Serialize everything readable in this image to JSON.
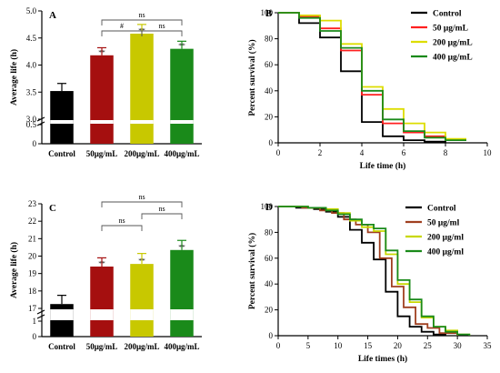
{
  "chart_data": [
    {
      "panel": "A",
      "type": "bar",
      "ylabel": "Average life (h)",
      "ylim_upper": [
        3.0,
        5.0
      ],
      "y_ticks_upper": [
        "3.0",
        "3.5",
        "4.0",
        "4.5",
        "5.0"
      ],
      "y_ticks_lower": [
        "0",
        "0.5"
      ],
      "categories": [
        "Control",
        "50μg/mL",
        "200μg/mL",
        "400μg/mL"
      ],
      "values": [
        3.52,
        4.18,
        4.58,
        4.3
      ],
      "errors": [
        0.14,
        0.14,
        0.17,
        0.14
      ],
      "colors": [
        "#000000",
        "#a50f0f",
        "#c8c800",
        "#1a8a1a"
      ],
      "bar_sig": [
        "",
        "**",
        "**",
        "**"
      ],
      "brackets": [
        {
          "from": 1,
          "to": 3,
          "label": "ns",
          "level": 2
        },
        {
          "from": 1,
          "to": 2,
          "label": "#",
          "level": 1
        },
        {
          "from": 2,
          "to": 3,
          "label": "ns",
          "level": 1
        }
      ]
    },
    {
      "panel": "B",
      "type": "line",
      "xlabel": "Life time (h)",
      "ylabel": "Percent survival (%)",
      "xlim": [
        0,
        10
      ],
      "ylim": [
        0,
        100
      ],
      "x_ticks": [
        "0",
        "2",
        "4",
        "6",
        "8",
        "10"
      ],
      "y_ticks": [
        "0",
        "20",
        "40",
        "60",
        "80",
        "100"
      ],
      "legend_position": "top-right",
      "series": [
        {
          "name": "Control",
          "color": "#000000",
          "points": [
            [
              0,
              100
            ],
            [
              1,
              100
            ],
            [
              1,
              92
            ],
            [
              2,
              92
            ],
            [
              2,
              81
            ],
            [
              3,
              81
            ],
            [
              3,
              55
            ],
            [
              4,
              55
            ],
            [
              4,
              16
            ],
            [
              5,
              16
            ],
            [
              5,
              5
            ],
            [
              6,
              5
            ],
            [
              6,
              2
            ],
            [
              7,
              2
            ],
            [
              7,
              1
            ],
            [
              8,
              1
            ],
            [
              8,
              0
            ]
          ]
        },
        {
          "name": "50 μg/mL",
          "color": "#ff2020",
          "points": [
            [
              0,
              100
            ],
            [
              1,
              100
            ],
            [
              1,
              97
            ],
            [
              2,
              97
            ],
            [
              2,
              88
            ],
            [
              3,
              88
            ],
            [
              3,
              71
            ],
            [
              4,
              71
            ],
            [
              4,
              37
            ],
            [
              5,
              37
            ],
            [
              5,
              15
            ],
            [
              6,
              15
            ],
            [
              6,
              8
            ],
            [
              7,
              8
            ],
            [
              7,
              5
            ],
            [
              8,
              5
            ],
            [
              8,
              2
            ],
            [
              9,
              2
            ]
          ]
        },
        {
          "name": "200 μg/mL",
          "color": "#dddd00",
          "points": [
            [
              0,
              100
            ],
            [
              1,
              100
            ],
            [
              1,
              98
            ],
            [
              2,
              98
            ],
            [
              2,
              94
            ],
            [
              3,
              94
            ],
            [
              3,
              76
            ],
            [
              4,
              76
            ],
            [
              4,
              43
            ],
            [
              5,
              43
            ],
            [
              5,
              26
            ],
            [
              6,
              26
            ],
            [
              6,
              15
            ],
            [
              7,
              15
            ],
            [
              7,
              8
            ],
            [
              8,
              8
            ],
            [
              8,
              3
            ],
            [
              9,
              3
            ]
          ]
        },
        {
          "name": "400 μg/mL",
          "color": "#1a8a1a",
          "points": [
            [
              0,
              100
            ],
            [
              1,
              100
            ],
            [
              1,
              96
            ],
            [
              2,
              96
            ],
            [
              2,
              86
            ],
            [
              3,
              86
            ],
            [
              3,
              73
            ],
            [
              4,
              73
            ],
            [
              4,
              40
            ],
            [
              5,
              40
            ],
            [
              5,
              18
            ],
            [
              6,
              18
            ],
            [
              6,
              9
            ],
            [
              7,
              9
            ],
            [
              7,
              4
            ],
            [
              8,
              4
            ],
            [
              8,
              2
            ],
            [
              9,
              2
            ]
          ]
        }
      ]
    },
    {
      "panel": "C",
      "type": "bar",
      "ylabel": "Average life (h)",
      "ylim_upper": [
        17,
        23
      ],
      "y_ticks_upper": [
        "17",
        "18",
        "19",
        "20",
        "21",
        "22",
        "23"
      ],
      "y_ticks_lower": [
        "0",
        "1"
      ],
      "categories": [
        "Control",
        "50μg/mL",
        "200μg/mL",
        "400μg/mL"
      ],
      "values": [
        17.25,
        19.4,
        19.55,
        20.35
      ],
      "errors": [
        0.5,
        0.5,
        0.6,
        0.55
      ],
      "colors": [
        "#000000",
        "#a50f0f",
        "#c8c800",
        "#1a8a1a"
      ],
      "bar_sig": [
        "",
        "**",
        "**",
        "**"
      ],
      "brackets": [
        {
          "from": 1,
          "to": 3,
          "label": "ns",
          "level": 3
        },
        {
          "from": 2,
          "to": 3,
          "label": "ns",
          "level": 2
        },
        {
          "from": 1,
          "to": 2,
          "label": "ns",
          "level": 1
        }
      ]
    },
    {
      "panel": "D",
      "type": "line",
      "xlabel": "Life times  (h)",
      "ylabel": "Percent survival (%)",
      "xlim": [
        0,
        35
      ],
      "ylim": [
        0,
        100
      ],
      "x_ticks": [
        "0",
        "5",
        "10",
        "15",
        "20",
        "25",
        "30",
        "35"
      ],
      "y_ticks": [
        "0",
        "20",
        "40",
        "60",
        "80",
        "100"
      ],
      "legend_position": "top-right",
      "series": [
        {
          "name": "Control",
          "color": "#000000",
          "points": [
            [
              0,
              100
            ],
            [
              3,
              100
            ],
            [
              3,
              99
            ],
            [
              6,
              99
            ],
            [
              6,
              98
            ],
            [
              8,
              98
            ],
            [
              8,
              96
            ],
            [
              10,
              96
            ],
            [
              10,
              92
            ],
            [
              12,
              92
            ],
            [
              12,
              82
            ],
            [
              14,
              82
            ],
            [
              14,
              72
            ],
            [
              16,
              72
            ],
            [
              16,
              59
            ],
            [
              18,
              59
            ],
            [
              18,
              34
            ],
            [
              20,
              34
            ],
            [
              20,
              15
            ],
            [
              22,
              15
            ],
            [
              22,
              7
            ],
            [
              24,
              7
            ],
            [
              24,
              3
            ],
            [
              26,
              3
            ],
            [
              26,
              1
            ],
            [
              28,
              1
            ],
            [
              28,
              0
            ]
          ]
        },
        {
          "name": "50 μg/ml",
          "color": "#a04020",
          "points": [
            [
              0,
              100
            ],
            [
              4,
              100
            ],
            [
              4,
              99
            ],
            [
              7,
              99
            ],
            [
              7,
              97
            ],
            [
              9,
              97
            ],
            [
              9,
              95
            ],
            [
              11,
              95
            ],
            [
              11,
              90
            ],
            [
              13,
              90
            ],
            [
              13,
              86
            ],
            [
              15,
              86
            ],
            [
              15,
              80
            ],
            [
              17,
              80
            ],
            [
              17,
              60
            ],
            [
              19,
              60
            ],
            [
              19,
              38
            ],
            [
              21,
              38
            ],
            [
              21,
              22
            ],
            [
              23,
              22
            ],
            [
              23,
              9
            ],
            [
              25,
              9
            ],
            [
              25,
              6
            ],
            [
              27,
              6
            ],
            [
              27,
              2
            ],
            [
              30,
              2
            ],
            [
              30,
              0
            ]
          ]
        },
        {
          "name": "200 μg/ml",
          "color": "#c8d800",
          "points": [
            [
              0,
              100
            ],
            [
              5,
              100
            ],
            [
              5,
              99
            ],
            [
              8,
              99
            ],
            [
              8,
              98
            ],
            [
              10,
              98
            ],
            [
              10,
              95
            ],
            [
              12,
              95
            ],
            [
              12,
              89
            ],
            [
              14,
              89
            ],
            [
              14,
              84
            ],
            [
              16,
              84
            ],
            [
              16,
              81
            ],
            [
              18,
              81
            ],
            [
              18,
              63
            ],
            [
              20,
              63
            ],
            [
              20,
              40
            ],
            [
              22,
              40
            ],
            [
              22,
              26
            ],
            [
              24,
              26
            ],
            [
              24,
              14
            ],
            [
              26,
              14
            ],
            [
              26,
              7
            ],
            [
              28,
              7
            ],
            [
              28,
              4
            ],
            [
              30,
              4
            ],
            [
              30,
              1
            ],
            [
              32,
              1
            ],
            [
              32,
              0
            ]
          ]
        },
        {
          "name": "400 μg/ml",
          "color": "#1a8a1a",
          "points": [
            [
              0,
              100
            ],
            [
              5,
              100
            ],
            [
              5,
              99
            ],
            [
              8,
              99
            ],
            [
              8,
              97
            ],
            [
              10,
              97
            ],
            [
              10,
              94
            ],
            [
              12,
              94
            ],
            [
              12,
              90
            ],
            [
              14,
              90
            ],
            [
              14,
              86
            ],
            [
              16,
              86
            ],
            [
              16,
              83
            ],
            [
              18,
              83
            ],
            [
              18,
              66
            ],
            [
              20,
              66
            ],
            [
              20,
              43
            ],
            [
              22,
              43
            ],
            [
              22,
              28
            ],
            [
              24,
              28
            ],
            [
              24,
              15
            ],
            [
              26,
              15
            ],
            [
              26,
              7
            ],
            [
              28,
              7
            ],
            [
              28,
              3
            ],
            [
              30,
              3
            ],
            [
              30,
              1
            ],
            [
              32,
              1
            ],
            [
              32,
              0
            ]
          ]
        }
      ]
    }
  ]
}
